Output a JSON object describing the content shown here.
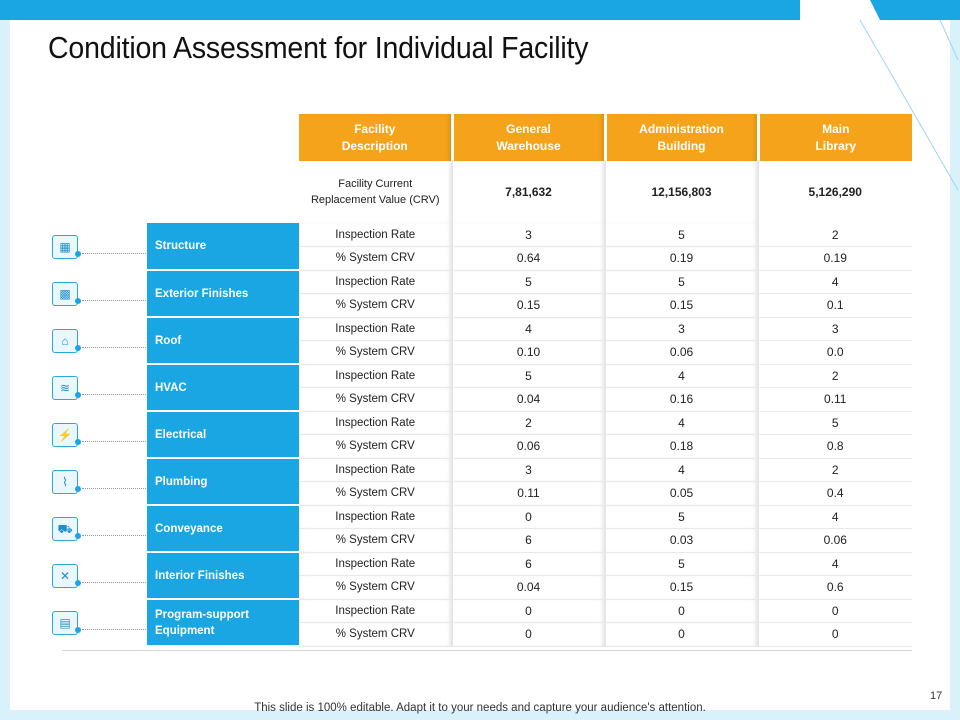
{
  "title": "Condition Assessment for Individual Facility",
  "colors": {
    "accent_orange": "#f5a31a",
    "accent_blue": "#1aa6e3",
    "bg_light_blue": "#d8f1fb"
  },
  "header": {
    "col1": [
      "Facility",
      "Description"
    ],
    "col2": [
      "General",
      "Warehouse"
    ],
    "col3": [
      "Administration",
      "Building"
    ],
    "col4": [
      "Main",
      "Library"
    ]
  },
  "crv": {
    "label_line1": "Facility Current",
    "label_bold": "Replacement Value",
    "label_suffix": "(CRV)",
    "values": [
      "7,81,632",
      "12,156,803",
      "5,126,290"
    ]
  },
  "row_labels": {
    "rate": "Inspection Rate",
    "crv": "% System CRV"
  },
  "categories": [
    {
      "name": "Structure",
      "icon": "building-icon",
      "glyph": "▦",
      "rate": [
        "3",
        "5",
        "2"
      ],
      "crv": [
        "0.64",
        "0.19",
        "0.19"
      ]
    },
    {
      "name": "Exterior Finishes",
      "icon": "brick-wall-icon",
      "glyph": "▩",
      "rate": [
        "5",
        "5",
        "4"
      ],
      "crv": [
        "0.15",
        "0.15",
        "0.1"
      ]
    },
    {
      "name": "Roof",
      "icon": "roof-icon",
      "glyph": "⌂",
      "rate": [
        "4",
        "3",
        "3"
      ],
      "crv": [
        "0.10",
        "0.06",
        "0.0"
      ]
    },
    {
      "name": "HVAC",
      "icon": "air-conditioner-icon",
      "glyph": "≋",
      "rate": [
        "5",
        "4",
        "2"
      ],
      "crv": [
        "0.04",
        "0.16",
        "0.11"
      ]
    },
    {
      "name": "Electrical",
      "icon": "plug-icon",
      "glyph": "⚡",
      "rate": [
        "2",
        "4",
        "5"
      ],
      "crv": [
        "0.06",
        "0.18",
        "0.8"
      ]
    },
    {
      "name": "Plumbing",
      "icon": "pipe-icon",
      "glyph": "⌇",
      "rate": [
        "3",
        "4",
        "2"
      ],
      "crv": [
        "0.11",
        "0.05",
        "0.4"
      ]
    },
    {
      "name": "Conveyance",
      "icon": "truck-icon",
      "glyph": "⛟",
      "rate": [
        "0",
        "5",
        "4"
      ],
      "crv": [
        "6",
        "0.03",
        "0.06"
      ]
    },
    {
      "name": "Interior Finishes",
      "icon": "tools-icon",
      "glyph": "✕",
      "rate": [
        "6",
        "5",
        "4"
      ],
      "crv": [
        "0.04",
        "0.15",
        "0.6"
      ]
    },
    {
      "name": "Program-support Equipment",
      "icon": "equipment-icon",
      "glyph": "▤",
      "rate": [
        "0",
        "0",
        "0"
      ],
      "crv": [
        "0",
        "0",
        "0"
      ]
    }
  ],
  "footer": "This slide is 100% editable. Adapt it to your needs and capture your audience's attention.",
  "page_number": "17"
}
